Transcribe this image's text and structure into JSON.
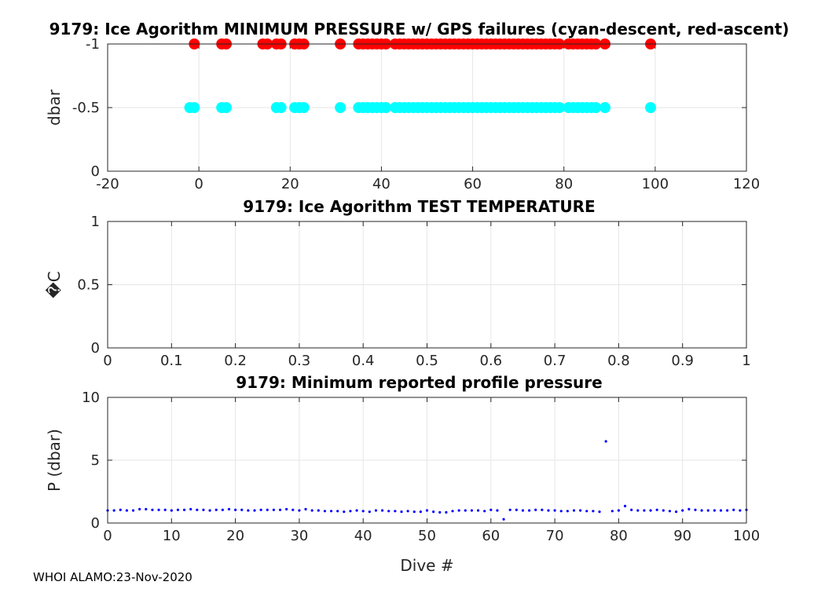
{
  "footer": "WHOI ALAMO:23-Nov-2020",
  "chart_data": [
    {
      "type": "scatter",
      "title": "9179: Ice Agorithm MINIMUM PRESSURE w/ GPS failures (cyan-descent, red-ascent)",
      "xlabel": "",
      "ylabel": "dbar",
      "xlim": [
        -20,
        120
      ],
      "ylim": [
        0,
        -1
      ],
      "y_reversed": true,
      "xticks": [
        "-20",
        "0",
        "20",
        "40",
        "60",
        "80",
        "100",
        "120"
      ],
      "yticks": [
        "-1",
        "-0.5",
        "0"
      ],
      "grid": true,
      "series": [
        {
          "color": "#00ffff",
          "y": -0.5,
          "x": [
            -2,
            -1,
            5,
            6,
            17,
            18,
            21,
            22,
            23,
            31,
            35,
            36,
            37,
            38,
            39,
            40,
            41,
            43,
            44,
            45,
            46,
            47,
            48,
            49,
            50,
            51,
            52,
            53,
            54,
            55,
            56,
            57,
            58,
            59,
            60,
            61,
            62,
            63,
            64,
            65,
            66,
            67,
            68,
            69,
            70,
            71,
            72,
            73,
            74,
            75,
            76,
            77,
            78,
            79,
            81,
            82,
            83,
            84,
            85,
            86,
            87,
            89,
            99
          ]
        },
        {
          "color": "#ff0000",
          "y": -1,
          "x": [
            -1,
            5,
            6,
            14,
            15,
            17,
            18,
            21,
            22,
            23,
            31,
            35,
            36,
            37,
            38,
            39,
            40,
            41,
            43,
            44,
            45,
            46,
            47,
            48,
            49,
            50,
            51,
            52,
            53,
            54,
            55,
            56,
            57,
            58,
            59,
            60,
            61,
            62,
            63,
            64,
            65,
            66,
            67,
            68,
            69,
            70,
            71,
            72,
            73,
            74,
            75,
            76,
            77,
            78,
            79,
            81,
            82,
            83,
            84,
            85,
            86,
            87,
            89,
            99
          ]
        }
      ]
    },
    {
      "type": "scatter",
      "title": "9179: Ice Agorithm TEST TEMPERATURE",
      "xlabel": "",
      "ylabel": "�C",
      "xlim": [
        0,
        1
      ],
      "ylim": [
        0,
        1
      ],
      "xticks": [
        "0",
        "0.1",
        "0.2",
        "0.3",
        "0.4",
        "0.5",
        "0.6",
        "0.7",
        "0.8",
        "0.9",
        "1"
      ],
      "yticks": [
        "1",
        "0.5",
        "0"
      ],
      "grid": true,
      "series": []
    },
    {
      "type": "scatter",
      "title": "9179: Minimum reported profile pressure",
      "xlabel": "Dive #",
      "ylabel": "P (dbar)",
      "xlim": [
        0,
        100
      ],
      "ylim": [
        0,
        10
      ],
      "y_reversed": true,
      "xticks": [
        "0",
        "10",
        "20",
        "30",
        "40",
        "50",
        "60",
        "70",
        "80",
        "90",
        "100"
      ],
      "yticks": [
        "0",
        "5",
        "10"
      ],
      "grid": true,
      "series": [
        {
          "color": "#0000ff",
          "x": [
            0,
            1,
            2,
            3,
            4,
            5,
            6,
            7,
            8,
            9,
            10,
            11,
            12,
            13,
            14,
            15,
            16,
            17,
            18,
            19,
            20,
            21,
            22,
            23,
            24,
            25,
            26,
            27,
            28,
            29,
            30,
            31,
            32,
            33,
            34,
            35,
            36,
            37,
            38,
            39,
            40,
            41,
            42,
            43,
            44,
            45,
            46,
            47,
            48,
            49,
            50,
            51,
            52,
            53,
            54,
            55,
            56,
            57,
            58,
            59,
            60,
            61,
            62,
            63,
            64,
            65,
            66,
            67,
            68,
            69,
            70,
            71,
            72,
            73,
            74,
            75,
            76,
            77,
            78,
            79,
            80,
            81,
            82,
            83,
            84,
            85,
            86,
            87,
            88,
            89,
            90,
            91,
            92,
            93,
            94,
            95,
            96,
            97,
            98,
            99,
            100
          ],
          "y": [
            1.0,
            1.0,
            1.05,
            1.0,
            1.0,
            1.1,
            1.1,
            1.05,
            1.05,
            1.05,
            1.0,
            1.05,
            1.05,
            1.1,
            1.05,
            1.05,
            1.0,
            1.05,
            1.05,
            1.1,
            1.05,
            1.05,
            1.0,
            1.0,
            1.05,
            1.05,
            1.05,
            1.05,
            1.1,
            1.05,
            1.0,
            1.1,
            1.0,
            1.0,
            0.95,
            0.95,
            0.95,
            0.9,
            0.95,
            1.0,
            0.95,
            0.9,
            1.0,
            1.0,
            0.95,
            0.95,
            0.9,
            0.95,
            0.9,
            0.9,
            1.0,
            0.9,
            0.85,
            0.85,
            0.95,
            1.0,
            1.0,
            1.0,
            1.0,
            0.95,
            1.05,
            1.0,
            0.3,
            1.05,
            1.05,
            1.0,
            1.0,
            1.05,
            1.05,
            1.0,
            1.0,
            0.95,
            0.95,
            1.0,
            1.0,
            0.95,
            0.95,
            0.9,
            6.5,
            0.95,
            1.0,
            1.35,
            1.05,
            1.0,
            1.0,
            1.0,
            1.05,
            1.0,
            0.95,
            0.9,
            1.0,
            1.1,
            1.05,
            1.0,
            1.0,
            1.0,
            1.0,
            1.0,
            1.05,
            1.0,
            1.05
          ]
        }
      ]
    }
  ]
}
